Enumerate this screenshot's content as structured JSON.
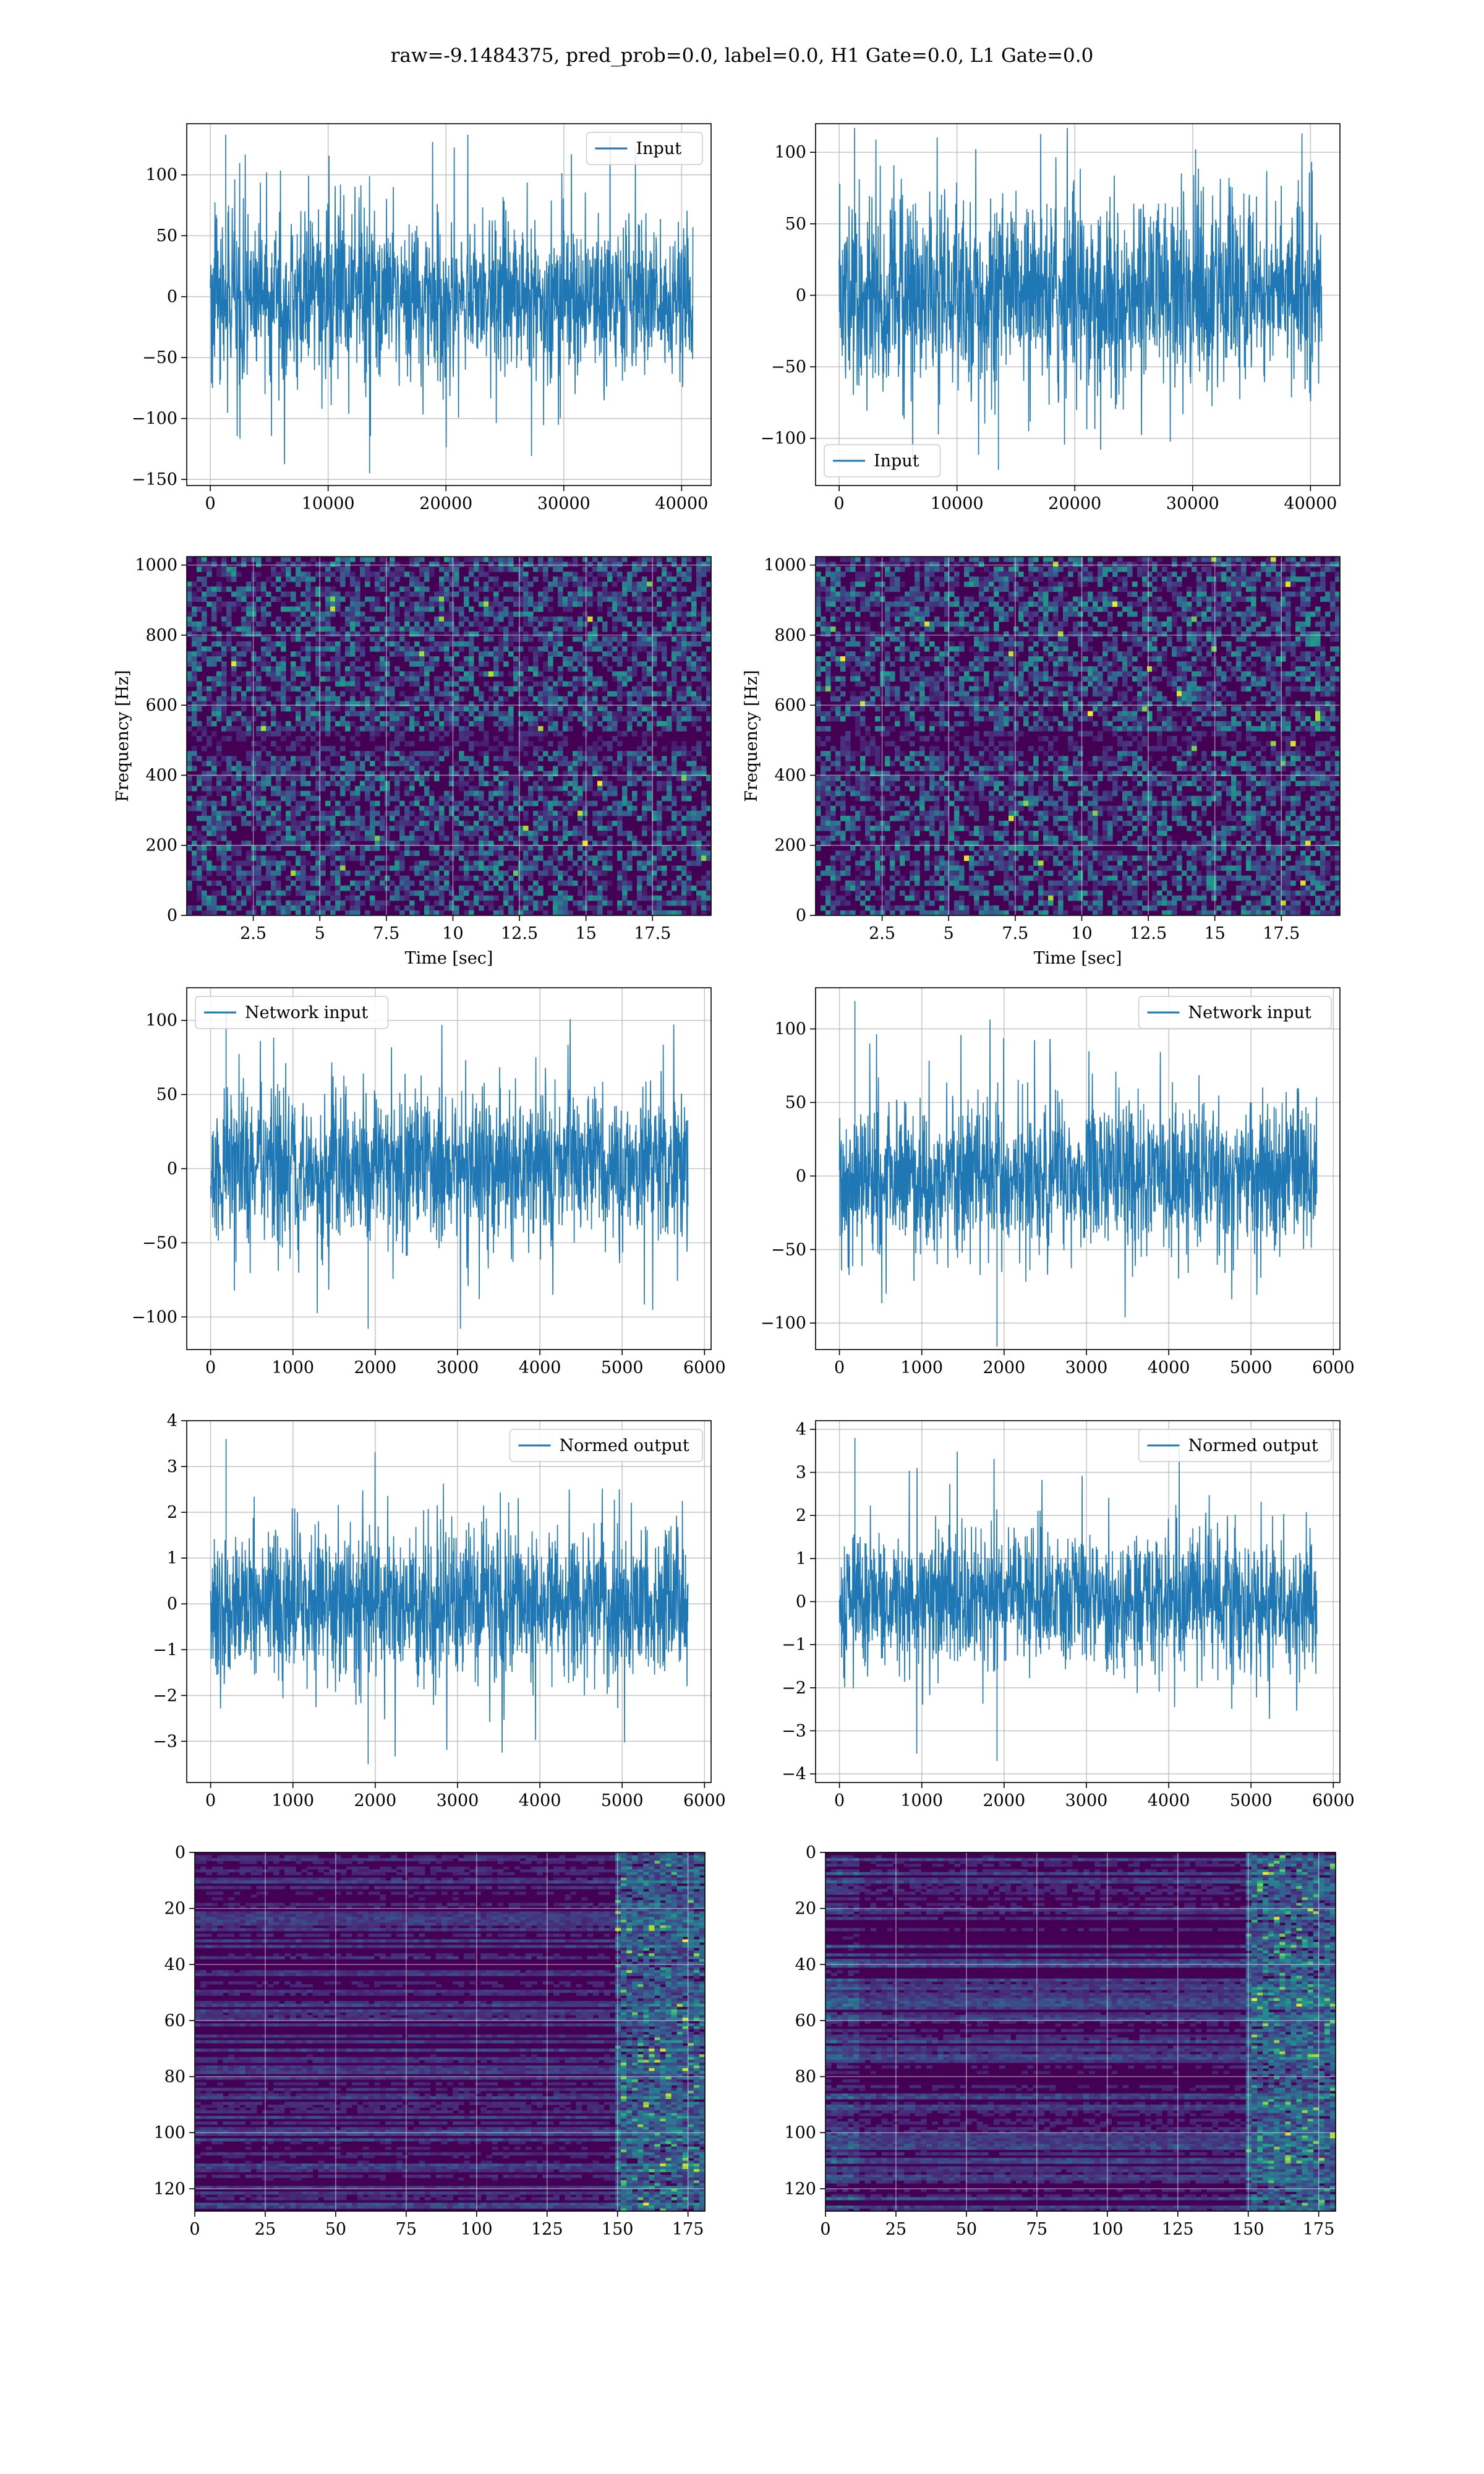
{
  "figure": {
    "title": "raw=-9.1484375, pred_prob=0.0, label=0.0, H1 Gate=0.0, L1 Gate=0.0"
  },
  "colors": {
    "signal": "#1f77b4",
    "grid": "#b0b0b0",
    "viridis_low": "#440154",
    "viridis_high": "#fde725"
  },
  "chart_data": [
    {
      "id": "input-h1",
      "type": "line",
      "title": "",
      "xlabel": "",
      "ylabel": "",
      "xlim": [
        -2000,
        42500
      ],
      "ylim": [
        -155,
        142
      ],
      "xticks": [
        0,
        10000,
        20000,
        30000,
        40000
      ],
      "yticks": [
        -150,
        -100,
        -50,
        0,
        50,
        100
      ],
      "legend": "top-right",
      "series": [
        {
          "name": "Input",
          "n_points": 40960,
          "x_range": [
            0,
            40960
          ],
          "typical_band": [
            -70,
            70
          ],
          "extremes": [
            -145,
            133
          ]
        }
      ]
    },
    {
      "id": "input-l1",
      "type": "line",
      "title": "",
      "xlabel": "",
      "ylabel": "",
      "xlim": [
        -2000,
        42500
      ],
      "ylim": [
        -133,
        120
      ],
      "xticks": [
        0,
        10000,
        20000,
        30000,
        40000
      ],
      "yticks": [
        -100,
        -50,
        0,
        50,
        100
      ],
      "legend": "bottom-left",
      "series": [
        {
          "name": "Input",
          "n_points": 40960,
          "x_range": [
            0,
            40960
          ],
          "typical_band": [
            -70,
            70
          ],
          "extremes": [
            -122,
            117
          ]
        }
      ]
    },
    {
      "id": "spec-h1",
      "type": "heatmap",
      "xlabel": "Time [sec]",
      "ylabel": "Frequency [Hz]",
      "xlim": [
        0,
        19.7
      ],
      "ylim": [
        0,
        1024
      ],
      "xticks": [
        2.5,
        5.0,
        7.5,
        10.0,
        12.5,
        15.0,
        17.5
      ],
      "yticks": [
        0,
        200,
        400,
        600,
        800,
        1000
      ],
      "colormap": "viridis",
      "dark_band_hz": [
        470,
        530
      ]
    },
    {
      "id": "spec-l1",
      "type": "heatmap",
      "xlabel": "Time [sec]",
      "ylabel": "Frequency [Hz]",
      "xlim": [
        0,
        19.7
      ],
      "ylim": [
        0,
        1024
      ],
      "xticks": [
        2.5,
        5.0,
        7.5,
        10.0,
        12.5,
        15.0,
        17.5
      ],
      "yticks": [
        0,
        200,
        400,
        600,
        800,
        1000
      ],
      "colormap": "viridis",
      "dark_band_hz": [
        470,
        530
      ]
    },
    {
      "id": "net-h1",
      "type": "line",
      "xlim": [
        -290,
        6080
      ],
      "ylim": [
        -122,
        122
      ],
      "xticks": [
        0,
        1000,
        2000,
        3000,
        4000,
        5000,
        6000
      ],
      "yticks": [
        -100,
        -50,
        0,
        50,
        100
      ],
      "legend": "top-left",
      "series": [
        {
          "name": "Network input",
          "n_points": 5800,
          "x_range": [
            0,
            5800
          ],
          "typical_band": [
            -55,
            55
          ],
          "extremes": [
            -108,
            105
          ]
        }
      ]
    },
    {
      "id": "net-l1",
      "type": "line",
      "xlim": [
        -290,
        6080
      ],
      "ylim": [
        -118,
        128
      ],
      "xticks": [
        0,
        1000,
        2000,
        3000,
        4000,
        5000,
        6000
      ],
      "yticks": [
        -100,
        -50,
        0,
        50,
        100
      ],
      "legend": "top-right",
      "series": [
        {
          "name": "Network input",
          "n_points": 5800,
          "x_range": [
            0,
            5800
          ],
          "typical_band": [
            -55,
            55
          ],
          "extremes": [
            -116,
            119
          ]
        }
      ]
    },
    {
      "id": "norm-h1",
      "type": "line",
      "xlim": [
        -290,
        6080
      ],
      "ylim": [
        -3.9,
        4.0
      ],
      "xticks": [
        0,
        1000,
        2000,
        3000,
        4000,
        5000,
        6000
      ],
      "yticks": [
        -3,
        -2,
        -1,
        0,
        1,
        2,
        3,
        4
      ],
      "legend": "top-right",
      "series": [
        {
          "name": "Normed output",
          "n_points": 5800,
          "x_range": [
            0,
            5800
          ],
          "typical_band": [
            -1.7,
            1.7
          ],
          "extremes": [
            -3.5,
            3.6
          ]
        }
      ]
    },
    {
      "id": "norm-l1",
      "type": "line",
      "xlim": [
        -290,
        6080
      ],
      "ylim": [
        -4.2,
        4.2
      ],
      "xticks": [
        0,
        1000,
        2000,
        3000,
        4000,
        5000,
        6000
      ],
      "yticks": [
        -4,
        -3,
        -2,
        -1,
        0,
        1,
        2,
        3,
        4
      ],
      "legend": "top-right",
      "series": [
        {
          "name": "Normed output",
          "n_points": 5800,
          "x_range": [
            0,
            5800
          ],
          "typical_band": [
            -1.7,
            1.7
          ],
          "extremes": [
            -3.7,
            3.8
          ]
        }
      ]
    },
    {
      "id": "feat-h1",
      "type": "heatmap",
      "xlim": [
        0,
        181
      ],
      "ylim": [
        128,
        0
      ],
      "xticks": [
        0,
        25,
        50,
        75,
        100,
        125,
        150,
        175
      ],
      "yticks": [
        0,
        20,
        40,
        60,
        80,
        100,
        120
      ],
      "colormap": "viridis",
      "bright_region_x": [
        150,
        181
      ]
    },
    {
      "id": "feat-l1",
      "type": "heatmap",
      "xlim": [
        0,
        181
      ],
      "ylim": [
        128,
        0
      ],
      "xticks": [
        0,
        25,
        50,
        75,
        100,
        125,
        150,
        175
      ],
      "yticks": [
        0,
        20,
        40,
        60,
        80,
        100,
        120
      ],
      "colormap": "viridis",
      "bright_region_x": [
        150,
        181
      ]
    }
  ]
}
